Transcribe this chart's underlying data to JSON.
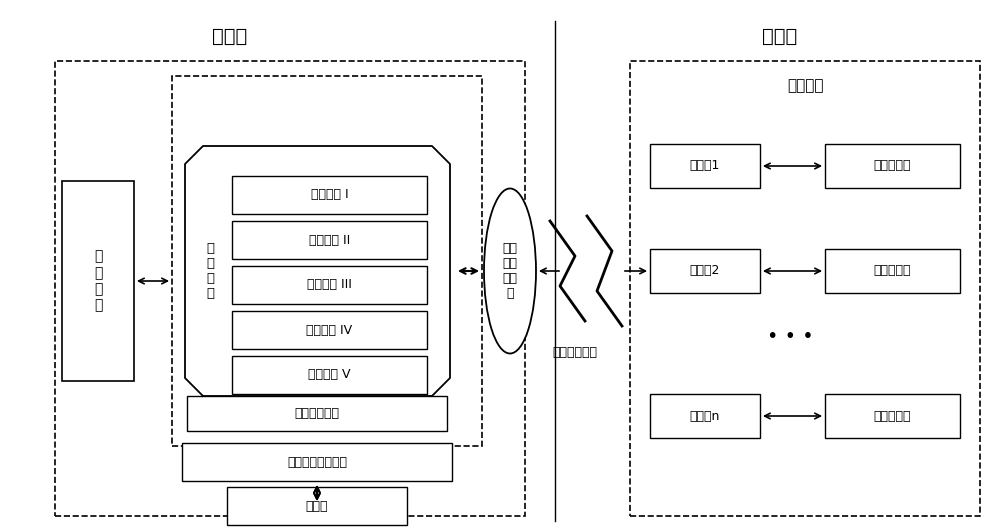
{
  "bg_color": "#ffffff",
  "title_zhikong": "智控端",
  "title_tance": "探测端",
  "label_zhikong_center": "指\n控\n中\n心",
  "label_zhixuan": "智\n选\n模\n块",
  "modes": [
    "探测模式 I",
    "探测模式 II",
    "探测模式 III",
    "探测模式 IV",
    "探测模式 V"
  ],
  "label_rengong": "人工介入模式",
  "label_zonghe": "综合信息处理单元",
  "label_database": "数据库",
  "label_nest": "探测\n设备\n智能\n巢",
  "label_wireless": "无线通信模块",
  "label_tance_equip": "探测设备",
  "uav_labels": [
    "无人机1",
    "无人机2",
    "无人机n"
  ],
  "mag_labels": [
    "磁探测模块",
    "磁探测模块",
    "磁探测模块"
  ],
  "dots": "• • •"
}
